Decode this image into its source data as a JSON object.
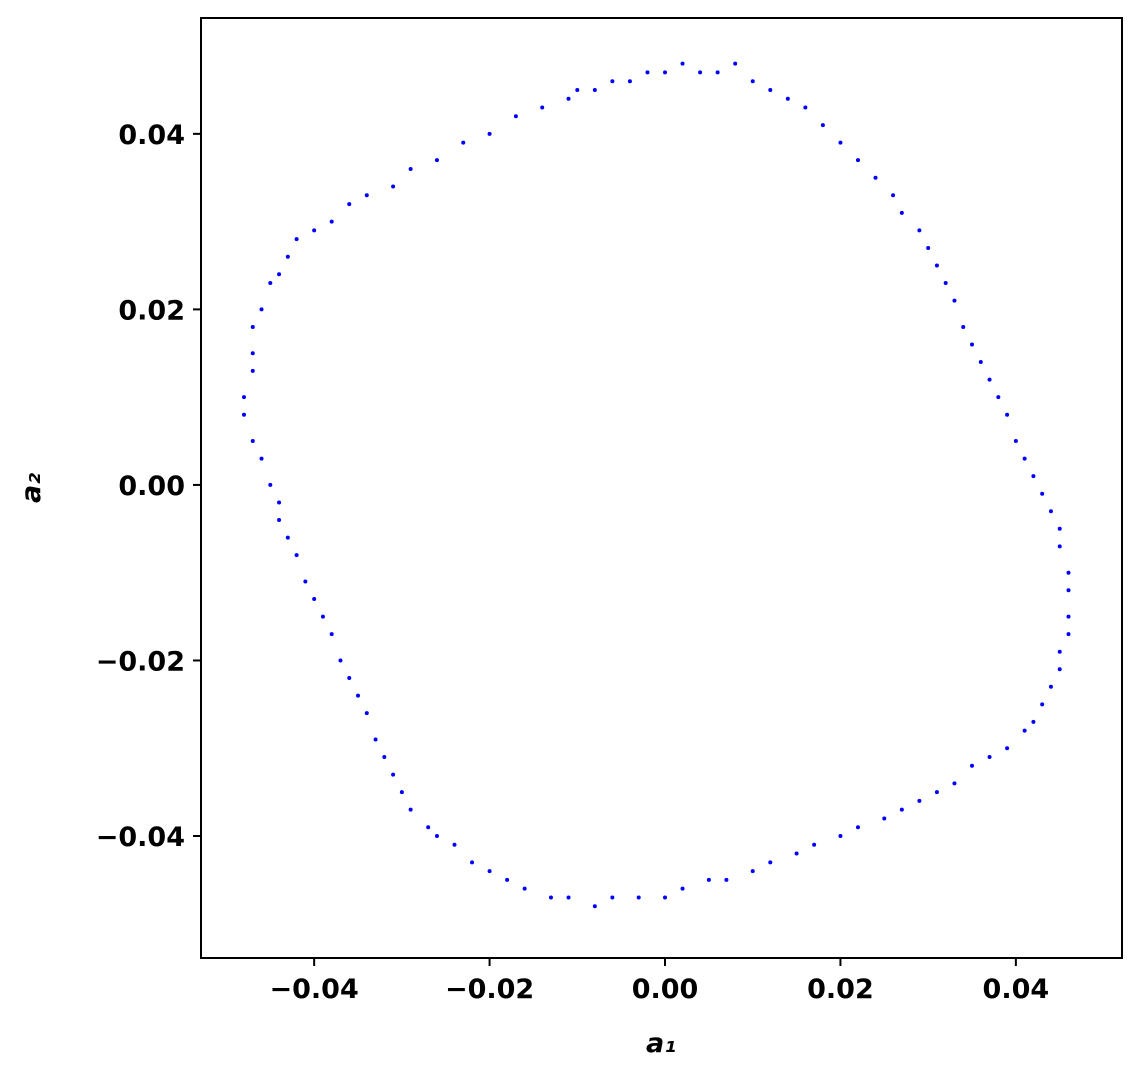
{
  "chart_data": {
    "type": "scatter",
    "x_label": "a₁",
    "y_label": "a₂",
    "color": "#0000ff",
    "xlim": [
      -0.0529,
      0.0521
    ],
    "ylim": [
      -0.0539,
      0.0532
    ],
    "xticks": [
      {
        "value": -0.04,
        "label": "−0.04"
      },
      {
        "value": -0.02,
        "label": "−0.02"
      },
      {
        "value": 0,
        "label": "0.00"
      },
      0.02,
      0.04
    ],
    "yticks": [
      {
        "value": -0.04,
        "label": "−0.04"
      },
      {
        "value": -0.02,
        "label": "−0.02"
      },
      {
        "value": 0,
        "label": "0.00"
      },
      0.02,
      0.04
    ],
    "x": [
      0.008,
      0.004,
      0.0,
      -0.004,
      -0.008,
      -0.011,
      -0.014,
      -0.017,
      -0.02,
      -0.023,
      -0.026,
      -0.029,
      -0.031,
      -0.034,
      -0.036,
      -0.038,
      -0.04,
      -0.042,
      -0.043,
      -0.044,
      -0.045,
      -0.046,
      -0.047,
      -0.047,
      -0.047,
      -0.048,
      -0.048,
      -0.047,
      -0.046,
      -0.045,
      -0.044,
      -0.044,
      -0.043,
      -0.042,
      -0.041,
      -0.04,
      -0.039,
      -0.038,
      -0.037,
      -0.036,
      -0.035,
      -0.034,
      -0.033,
      -0.032,
      -0.031,
      -0.03,
      -0.029,
      -0.027,
      -0.026,
      -0.024,
      -0.022,
      -0.02,
      -0.018,
      -0.016,
      -0.013,
      -0.011,
      -0.008,
      -0.006,
      -0.003,
      0.0,
      0.002,
      0.005,
      0.007,
      0.01,
      0.012,
      0.015,
      0.017,
      0.02,
      0.022,
      0.025,
      0.027,
      0.029,
      0.031,
      0.033,
      0.035,
      0.037,
      0.039,
      0.041,
      0.042,
      0.043,
      0.044,
      0.045,
      0.045,
      0.046,
      0.046,
      0.046,
      0.046,
      0.045,
      0.045,
      0.044,
      0.043,
      0.042,
      0.041,
      0.04,
      0.039,
      0.038,
      0.037,
      0.036,
      0.035,
      0.034,
      0.033,
      0.032,
      0.031,
      0.03,
      0.029,
      0.027,
      0.026,
      0.024,
      0.022,
      0.02,
      0.018,
      0.016,
      0.014,
      0.012,
      0.01,
      0.006,
      0.002,
      -0.002,
      -0.006,
      -0.01
    ],
    "y": [
      0.048,
      0.047,
      0.047,
      0.046,
      0.045,
      0.044,
      0.043,
      0.042,
      0.04,
      0.039,
      0.037,
      0.036,
      0.034,
      0.033,
      0.032,
      0.03,
      0.029,
      0.028,
      0.026,
      0.024,
      0.023,
      0.02,
      0.018,
      0.015,
      0.013,
      0.01,
      0.008,
      0.005,
      0.003,
      0.0,
      -0.002,
      -0.004,
      -0.006,
      -0.008,
      -0.011,
      -0.013,
      -0.015,
      -0.017,
      -0.02,
      -0.022,
      -0.024,
      -0.026,
      -0.029,
      -0.031,
      -0.033,
      -0.035,
      -0.037,
      -0.039,
      -0.04,
      -0.041,
      -0.043,
      -0.044,
      -0.045,
      -0.046,
      -0.047,
      -0.047,
      -0.048,
      -0.047,
      -0.047,
      -0.047,
      -0.046,
      -0.045,
      -0.045,
      -0.044,
      -0.043,
      -0.042,
      -0.041,
      -0.04,
      -0.039,
      -0.038,
      -0.037,
      -0.036,
      -0.035,
      -0.034,
      -0.032,
      -0.031,
      -0.03,
      -0.028,
      -0.027,
      -0.025,
      -0.023,
      -0.021,
      -0.019,
      -0.017,
      -0.015,
      -0.012,
      -0.01,
      -0.007,
      -0.005,
      -0.003,
      -0.001,
      0.001,
      0.003,
      0.005,
      0.008,
      0.01,
      0.012,
      0.014,
      0.016,
      0.018,
      0.021,
      0.023,
      0.025,
      0.027,
      0.029,
      0.031,
      0.033,
      0.035,
      0.037,
      0.039,
      0.041,
      0.043,
      0.044,
      0.045,
      0.046,
      0.047,
      0.048,
      0.047,
      0.046,
      0.045
    ]
  }
}
